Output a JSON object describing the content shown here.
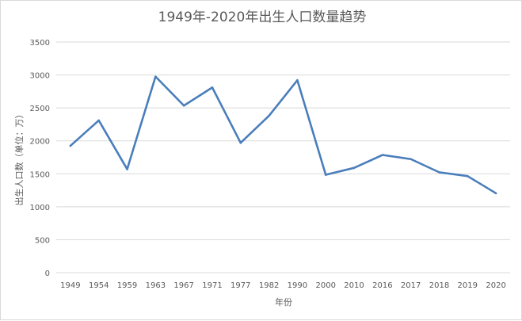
{
  "chart_data": {
    "type": "line",
    "title": "1949年-2020年出生人口数量趋势",
    "xlabel": "年份",
    "ylabel": "出生人口数（单位：万）",
    "categories": [
      "1949",
      "1954",
      "1959",
      "1963",
      "1967",
      "1971",
      "1977",
      "1982",
      "1990",
      "2000",
      "2010",
      "2016",
      "2017",
      "2018",
      "2019",
      "2020"
    ],
    "series": [
      {
        "values": [
          1925,
          2310,
          1570,
          2975,
          2535,
          2810,
          1970,
          2380,
          2920,
          1485,
          1590,
          1786,
          1723,
          1523,
          1465,
          1205
        ]
      }
    ],
    "ylim": [
      0,
      3500
    ],
    "yticks": [
      0,
      500,
      1000,
      1500,
      2000,
      2500,
      3000,
      3500
    ],
    "grid": true,
    "legend": "none",
    "line_color": "#4a7ebb",
    "grid_color": "#d9d9d9"
  }
}
